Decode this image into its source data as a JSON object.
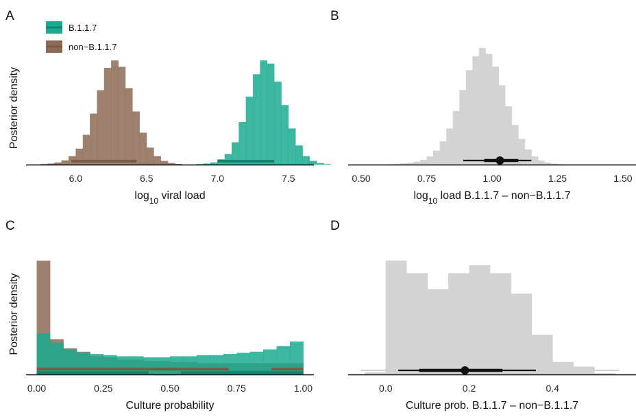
{
  "colors": {
    "b117": "#1aaa8f",
    "b117_dark": "#13856f",
    "non": "#8c6a55",
    "non_dark": "#7a5a46",
    "diff": "#d3d3d3",
    "point": "#111111"
  },
  "chart_data": [
    {
      "panel": "A",
      "type": "bar",
      "xlabel_base": "log",
      "xlabel_sub": "10",
      "xlabel_rest": " viral load",
      "ylabel": "Posterior density",
      "xlim": [
        5.65,
        7.68
      ],
      "ymax": 1.0,
      "xticks": [
        6.0,
        6.5,
        7.0,
        7.5
      ],
      "xtick_labels": [
        "6.0",
        "6.5",
        "7.0",
        "7.5"
      ],
      "legend": {
        "position": "top-left",
        "entries": [
          "B.1.1.7",
          "non-B.1.1.7"
        ]
      },
      "series": [
        {
          "name": "non-B.1.1.7",
          "color_key": "non",
          "bin_start": 5.75,
          "bin_width": 0.05,
          "densities": [
            0.005,
            0.01,
            0.02,
            0.04,
            0.08,
            0.15,
            0.28,
            0.48,
            0.7,
            0.91,
            0.98,
            0.92,
            0.72,
            0.5,
            0.3,
            0.16,
            0.08,
            0.035,
            0.015,
            0.006
          ],
          "interval": [
            5.97,
            6.43
          ],
          "interval_color_key": "non_dark"
        },
        {
          "name": "B.1.1.7",
          "color_key": "b117",
          "bin_start": 6.85,
          "bin_width": 0.05,
          "densities": [
            0.005,
            0.01,
            0.02,
            0.05,
            0.1,
            0.21,
            0.4,
            0.64,
            0.85,
            0.98,
            0.95,
            0.78,
            0.56,
            0.34,
            0.18,
            0.08,
            0.035,
            0.015,
            0.006
          ],
          "interval": [
            7.0,
            7.4
          ],
          "interval_color_key": "b117_dark"
        }
      ]
    },
    {
      "panel": "B",
      "type": "bar",
      "xlabel_base": "log",
      "xlabel_sub": "10",
      "xlabel_rest": " load B.1.1.7 – non−B.1.1.7",
      "xlim": [
        0.45,
        1.55
      ],
      "ymax": 1.0,
      "xticks": [
        0.5,
        0.75,
        1.0,
        1.25,
        1.5
      ],
      "xtick_labels": [
        "0.50",
        "0.75",
        "1.00",
        "1.25",
        "1.50"
      ],
      "series": [
        {
          "name": "difference",
          "color_key": "diff",
          "bin_start": 0.6,
          "bin_width": 0.025,
          "densities": [
            0.003,
            0.005,
            0.01,
            0.015,
            0.025,
            0.04,
            0.07,
            0.12,
            0.2,
            0.31,
            0.46,
            0.64,
            0.81,
            0.93,
            1.0,
            0.95,
            0.84,
            0.68,
            0.5,
            0.34,
            0.22,
            0.13,
            0.07,
            0.035,
            0.017,
            0.008,
            0.004
          ]
        }
      ],
      "median": 1.03,
      "interval_66": [
        0.97,
        1.1
      ],
      "interval_95": [
        0.89,
        1.15
      ]
    },
    {
      "panel": "C",
      "type": "bar",
      "xlabel": "Culture probability",
      "ylabel": "Posterior density",
      "xlim": [
        -0.04,
        1.04
      ],
      "ymax": 1.0,
      "xticks": [
        0,
        0.25,
        0.5,
        0.75,
        1.0
      ],
      "xtick_labels": [
        "0.00",
        "0.25",
        "0.50",
        "0.75",
        "1.00"
      ],
      "series": [
        {
          "name": "non-B.1.1.7",
          "color_key": "non",
          "bin_start": 0,
          "bin_width": 0.05,
          "densities": [
            1.0,
            0.31,
            0.23,
            0.2,
            0.16,
            0.15,
            0.13,
            0.13,
            0.12,
            0.12,
            0.11,
            0.11,
            0.1,
            0.1,
            0.1,
            0.1,
            0.1,
            0.1,
            0.1,
            0.1
          ],
          "intervals": [
            [
              0.0,
              0.72
            ],
            [
              0.88,
              1.0
            ]
          ],
          "interval_color_key": "non_dark"
        },
        {
          "name": "B.1.1.7",
          "color_key": "b117",
          "bin_start": 0,
          "bin_width": 0.05,
          "densities": [
            0.36,
            0.28,
            0.22,
            0.19,
            0.18,
            0.17,
            0.16,
            0.16,
            0.15,
            0.15,
            0.16,
            0.16,
            0.17,
            0.17,
            0.18,
            0.19,
            0.2,
            0.22,
            0.25,
            0.29
          ],
          "intervals": [
            [
              0.0,
              0.42
            ],
            [
              0.54,
              1.0
            ]
          ],
          "interval_color_key": "b117_dark"
        }
      ]
    },
    {
      "panel": "D",
      "type": "bar",
      "xlabel": "Culture prob. B.1.1.7 – non−B.1.1.7",
      "xlim": [
        -0.09,
        0.6
      ],
      "ymax": 1.0,
      "xticks": [
        0.0,
        0.2,
        0.4
      ],
      "xtick_labels": [
        "0.0",
        "0.2",
        "0.4"
      ],
      "series": [
        {
          "name": "difference",
          "color_key": "diff",
          "bin_start": -0.05,
          "bin_width": 0.05,
          "densities": [
            0.02,
            1.0,
            0.89,
            0.75,
            0.89,
            0.96,
            0.89,
            0.71,
            0.35,
            0.11,
            0.07,
            0.01
          ]
        }
      ],
      "median": 0.19,
      "interval_66": [
        0.08,
        0.28
      ],
      "interval_95": [
        0.03,
        0.36
      ],
      "tail": [
        -0.06,
        0.56
      ]
    }
  ],
  "panels": {
    "a": "A",
    "b": "B",
    "c": "C",
    "d": "D"
  },
  "legend": {
    "b117": "B.1.1.7",
    "non": "non−B.1.1.7"
  }
}
